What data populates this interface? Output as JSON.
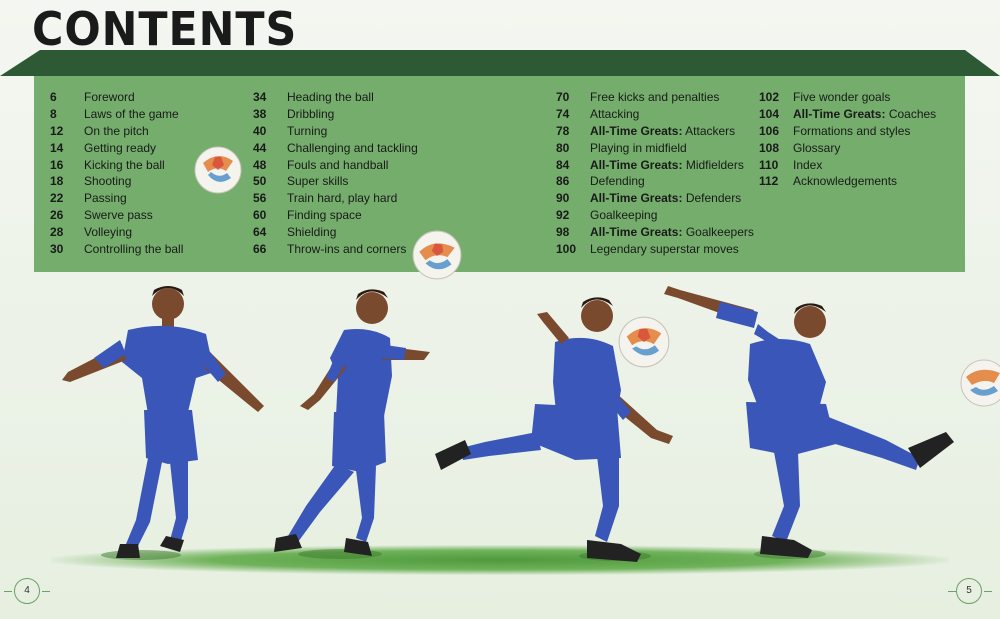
{
  "title": "CONTENTS",
  "toc": [
    [
      {
        "page": "6",
        "label": "Foreword"
      },
      {
        "page": "8",
        "label": "Laws of the game"
      },
      {
        "page": "12",
        "label": "On the pitch"
      },
      {
        "page": "14",
        "label": "Getting ready"
      },
      {
        "page": "16",
        "label": "Kicking the ball"
      },
      {
        "page": "18",
        "label": "Shooting"
      },
      {
        "page": "22",
        "label": "Passing"
      },
      {
        "page": "26",
        "label": "Swerve pass"
      },
      {
        "page": "28",
        "label": "Volleying"
      },
      {
        "page": "30",
        "label": "Controlling the ball"
      }
    ],
    [
      {
        "page": "34",
        "label": "Heading the ball"
      },
      {
        "page": "38",
        "label": "Dribbling"
      },
      {
        "page": "40",
        "label": "Turning"
      },
      {
        "page": "44",
        "label": "Challenging and tackling"
      },
      {
        "page": "48",
        "label": "Fouls and handball"
      },
      {
        "page": "50",
        "label": "Super skills"
      },
      {
        "page": "56",
        "label": "Train hard, play hard"
      },
      {
        "page": "60",
        "label": "Finding space"
      },
      {
        "page": "64",
        "label": "Shielding"
      },
      {
        "page": "66",
        "label": "Throw-ins and corners"
      }
    ],
    [
      {
        "page": "70",
        "label": "Free kicks and penalties"
      },
      {
        "page": "74",
        "label": "Attacking"
      },
      {
        "page": "78",
        "bold": "All-Time Greats:",
        "label": " Attackers"
      },
      {
        "page": "80",
        "label": "Playing in midfield"
      },
      {
        "page": "84",
        "bold": "All-Time Greats:",
        "label": " Midfielders"
      },
      {
        "page": "86",
        "label": "Defending"
      },
      {
        "page": "90",
        "bold": "All-Time Greats:",
        "label": " Defenders"
      },
      {
        "page": "92",
        "label": "Goalkeeping"
      },
      {
        "page": "98",
        "bold": "All-Time Greats:",
        "label": " Goalkeepers"
      },
      {
        "page": "100",
        "label": "Legendary superstar moves"
      }
    ],
    [
      {
        "page": "102",
        "label": "Five wonder goals"
      },
      {
        "page": "104",
        "bold": "All-Time Greats:",
        "label": " Coaches"
      },
      {
        "page": "106",
        "label": "Formations and styles"
      },
      {
        "page": "108",
        "label": "Glossary"
      },
      {
        "page": "110",
        "label": "Index"
      },
      {
        "page": "112",
        "label": "Acknowledgements"
      }
    ]
  ],
  "page_left": "4",
  "page_right": "5",
  "colors": {
    "board": "#74ad6c",
    "roof": "#2d5a35",
    "kit": "#3a56b8"
  }
}
